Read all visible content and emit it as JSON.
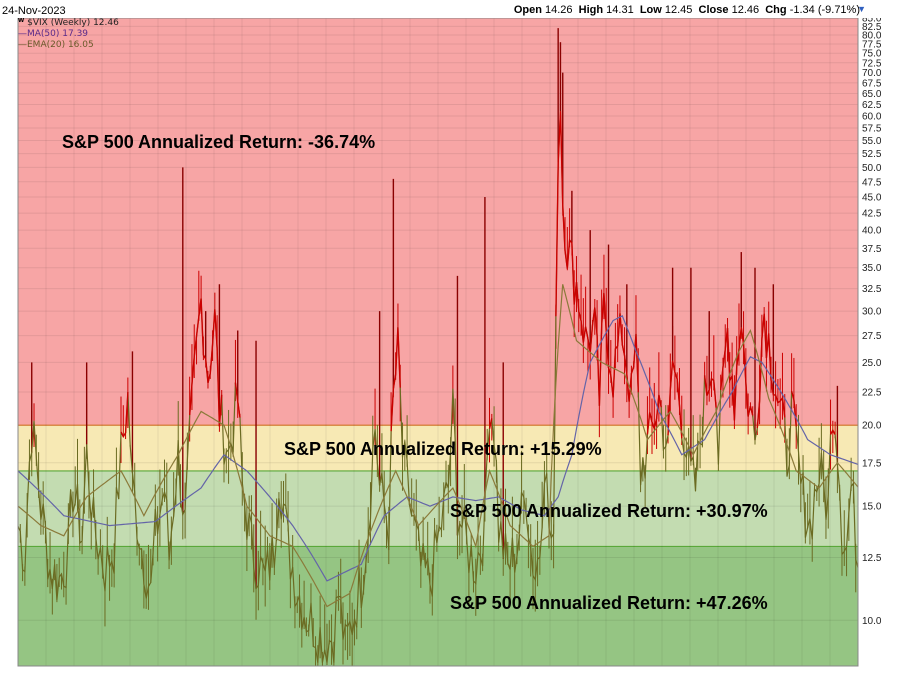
{
  "header": {
    "date": "24-Nov-2023",
    "open_label": "Open",
    "open_value": "14.26",
    "high_label": "High",
    "high_value": "14.31",
    "low_label": "Low",
    "low_value": "12.45",
    "close_label": "Close",
    "close_value": "12.46",
    "chg_label": "Chg",
    "chg_value": "-1.34 (-9.71%)"
  },
  "legend": {
    "vix": "$VIX (Weekly) 12.46",
    "ma": "MA(50) 17.39",
    "ema": "EMA(20) 16.05"
  },
  "colors": {
    "red_zone": "#f7a5a5",
    "yellow_zone": "#f7e9b4",
    "light_green_zone": "#c3dcb1",
    "dark_green_zone": "#95c583",
    "price_red": "#cc0000",
    "price_olive": "#6b6b22",
    "ma_line": "#6464a8",
    "ema_line": "#8b7a3a"
  },
  "chart_data": {
    "type": "line",
    "ylim": [
      8.5,
      85.0
    ],
    "y_scale": "log",
    "yticks": [
      "10.0",
      "12.5",
      "15.0",
      "17.5",
      "20.0",
      "22.5",
      "25.0",
      "27.5",
      "30.0",
      "32.5",
      "35.0",
      "37.5",
      "40.0",
      "42.5",
      "45.0",
      "47.5",
      "50.0",
      "52.5",
      "55.0",
      "57.5",
      "60.0",
      "62.5",
      "65.0",
      "67.5",
      "70.0",
      "72.5",
      "75.0",
      "77.5",
      "80.0",
      "82.5",
      "85.0"
    ],
    "zones": [
      {
        "from": 20.0,
        "to": 85.0,
        "label": "S&P 500 Annualized Return:  -36.74%"
      },
      {
        "from": 17.0,
        "to": 20.0,
        "label": "S&P 500 Annualized Return:  +15.29%"
      },
      {
        "from": 13.0,
        "to": 17.0,
        "label": "S&P 500 Annualized Return:  +30.97%"
      },
      {
        "from": 8.5,
        "to": 13.0,
        "label": "S&P 500 Annualized Return:  +47.26%"
      }
    ],
    "vix_anchors": [
      [
        0,
        14
      ],
      [
        3,
        12.6
      ],
      [
        6,
        20
      ],
      [
        10,
        15
      ],
      [
        14,
        12
      ],
      [
        18,
        11.5
      ],
      [
        22,
        12.8
      ],
      [
        24,
        16
      ],
      [
        28,
        13.5
      ],
      [
        30,
        18
      ],
      [
        33,
        14
      ],
      [
        38,
        12
      ],
      [
        42,
        13
      ],
      [
        45,
        18
      ],
      [
        48,
        22
      ],
      [
        50,
        16
      ],
      [
        54,
        13
      ],
      [
        58,
        11
      ],
      [
        60,
        13.5
      ],
      [
        64,
        16
      ],
      [
        66,
        12.5
      ],
      [
        70,
        18
      ],
      [
        73,
        14
      ],
      [
        78,
        26
      ],
      [
        80,
        31
      ],
      [
        83,
        24
      ],
      [
        86,
        29
      ],
      [
        88,
        21
      ],
      [
        92,
        18
      ],
      [
        96,
        22
      ],
      [
        98,
        16
      ],
      [
        102,
        13
      ],
      [
        108,
        11.5
      ],
      [
        112,
        13
      ],
      [
        114,
        17
      ],
      [
        118,
        13
      ],
      [
        122,
        11.2
      ],
      [
        126,
        10.2
      ],
      [
        130,
        9.8
      ],
      [
        134,
        9.2
      ],
      [
        138,
        9.5
      ],
      [
        140,
        11
      ],
      [
        143,
        9
      ],
      [
        146,
        10
      ],
      [
        150,
        11.5
      ],
      [
        153,
        14
      ],
      [
        156,
        20
      ],
      [
        158,
        16
      ],
      [
        162,
        14
      ],
      [
        164,
        22
      ],
      [
        166,
        26
      ],
      [
        168,
        18
      ],
      [
        172,
        14.5
      ],
      [
        176,
        12
      ],
      [
        180,
        11.5
      ],
      [
        184,
        13.5
      ],
      [
        188,
        16
      ],
      [
        190,
        21
      ],
      [
        192,
        15
      ],
      [
        196,
        13
      ],
      [
        200,
        12.2
      ],
      [
        204,
        14
      ],
      [
        206,
        22
      ],
      [
        208,
        20
      ],
      [
        210,
        14
      ],
      [
        214,
        12
      ],
      [
        218,
        13
      ],
      [
        222,
        16
      ],
      [
        224,
        13
      ],
      [
        226,
        11.8
      ],
      [
        228,
        13
      ],
      [
        230,
        18
      ],
      [
        232,
        14
      ],
      [
        234,
        12.5
      ],
      [
        236,
        52
      ],
      [
        237,
        65
      ],
      [
        238,
        45
      ],
      [
        240,
        38
      ],
      [
        244,
        33
      ],
      [
        248,
        27
      ],
      [
        252,
        28
      ],
      [
        254,
        22
      ],
      [
        256,
        30
      ],
      [
        260,
        24
      ],
      [
        264,
        28
      ],
      [
        268,
        22
      ],
      [
        270,
        26
      ],
      [
        272,
        17
      ],
      [
        276,
        19
      ],
      [
        280,
        22
      ],
      [
        284,
        18
      ],
      [
        286,
        25
      ],
      [
        290,
        21
      ],
      [
        293,
        17
      ],
      [
        296,
        16
      ],
      [
        300,
        22
      ],
      [
        304,
        26
      ],
      [
        306,
        18
      ],
      [
        310,
        28
      ],
      [
        313,
        22
      ],
      [
        316,
        30
      ],
      [
        318,
        23
      ],
      [
        322,
        19
      ],
      [
        326,
        30
      ],
      [
        328,
        27
      ],
      [
        332,
        22
      ],
      [
        336,
        18
      ],
      [
        338,
        21
      ],
      [
        342,
        16
      ],
      [
        346,
        14
      ],
      [
        350,
        17
      ],
      [
        354,
        15
      ],
      [
        356,
        22
      ],
      [
        358,
        19
      ],
      [
        360,
        14
      ],
      [
        362,
        13
      ],
      [
        364,
        16
      ],
      [
        367,
        12.46
      ]
    ],
    "spikes": [
      [
        6,
        25
      ],
      [
        30,
        25
      ],
      [
        50,
        26
      ],
      [
        72,
        50
      ],
      [
        82,
        30
      ],
      [
        88,
        33
      ],
      [
        96,
        28
      ],
      [
        104,
        27
      ],
      [
        158,
        30
      ],
      [
        164,
        48
      ],
      [
        192,
        34
      ],
      [
        204,
        45
      ],
      [
        212,
        25
      ],
      [
        236,
        82
      ],
      [
        237,
        78
      ],
      [
        238,
        70
      ],
      [
        242,
        46
      ],
      [
        250,
        40
      ],
      [
        258,
        38
      ],
      [
        266,
        33
      ],
      [
        286,
        35
      ],
      [
        294,
        35
      ],
      [
        302,
        30
      ],
      [
        316,
        37
      ],
      [
        322,
        35
      ],
      [
        330,
        33
      ],
      [
        358,
        23
      ]
    ],
    "ma50_anchors": [
      [
        0,
        17
      ],
      [
        20,
        14.5
      ],
      [
        40,
        14
      ],
      [
        60,
        14.2
      ],
      [
        80,
        16
      ],
      [
        90,
        18
      ],
      [
        100,
        17
      ],
      [
        110,
        15.5
      ],
      [
        120,
        14
      ],
      [
        135,
        11.5
      ],
      [
        150,
        12.2
      ],
      [
        160,
        14.5
      ],
      [
        170,
        15.5
      ],
      [
        180,
        15
      ],
      [
        190,
        15.5
      ],
      [
        200,
        15.3
      ],
      [
        210,
        15.5
      ],
      [
        220,
        14.8
      ],
      [
        230,
        14.5
      ],
      [
        236,
        15.5
      ],
      [
        242,
        18
      ],
      [
        250,
        25
      ],
      [
        260,
        29
      ],
      [
        264,
        29.5
      ],
      [
        270,
        26
      ],
      [
        280,
        21
      ],
      [
        290,
        18
      ],
      [
        300,
        19
      ],
      [
        312,
        22.5
      ],
      [
        320,
        25.5
      ],
      [
        325,
        25
      ],
      [
        335,
        22
      ],
      [
        345,
        19
      ],
      [
        355,
        18
      ],
      [
        367,
        17.4
      ]
    ],
    "ema20_anchors": [
      [
        0,
        15
      ],
      [
        10,
        14
      ],
      [
        20,
        13.5
      ],
      [
        30,
        15.5
      ],
      [
        45,
        17
      ],
      [
        55,
        14.5
      ],
      [
        70,
        18
      ],
      [
        80,
        21
      ],
      [
        90,
        20
      ],
      [
        100,
        15
      ],
      [
        110,
        13.5
      ],
      [
        120,
        13
      ],
      [
        135,
        10.5
      ],
      [
        145,
        11
      ],
      [
        155,
        14
      ],
      [
        165,
        17
      ],
      [
        175,
        14
      ],
      [
        190,
        16
      ],
      [
        200,
        13
      ],
      [
        206,
        17
      ],
      [
        215,
        14
      ],
      [
        225,
        13
      ],
      [
        232,
        13.5
      ],
      [
        238,
        33
      ],
      [
        244,
        27
      ],
      [
        255,
        25
      ],
      [
        265,
        24
      ],
      [
        275,
        19
      ],
      [
        285,
        21
      ],
      [
        295,
        18
      ],
      [
        305,
        21
      ],
      [
        315,
        26
      ],
      [
        320,
        28
      ],
      [
        328,
        22
      ],
      [
        340,
        17
      ],
      [
        350,
        16
      ],
      [
        358,
        17.5
      ],
      [
        367,
        16.05
      ]
    ]
  }
}
